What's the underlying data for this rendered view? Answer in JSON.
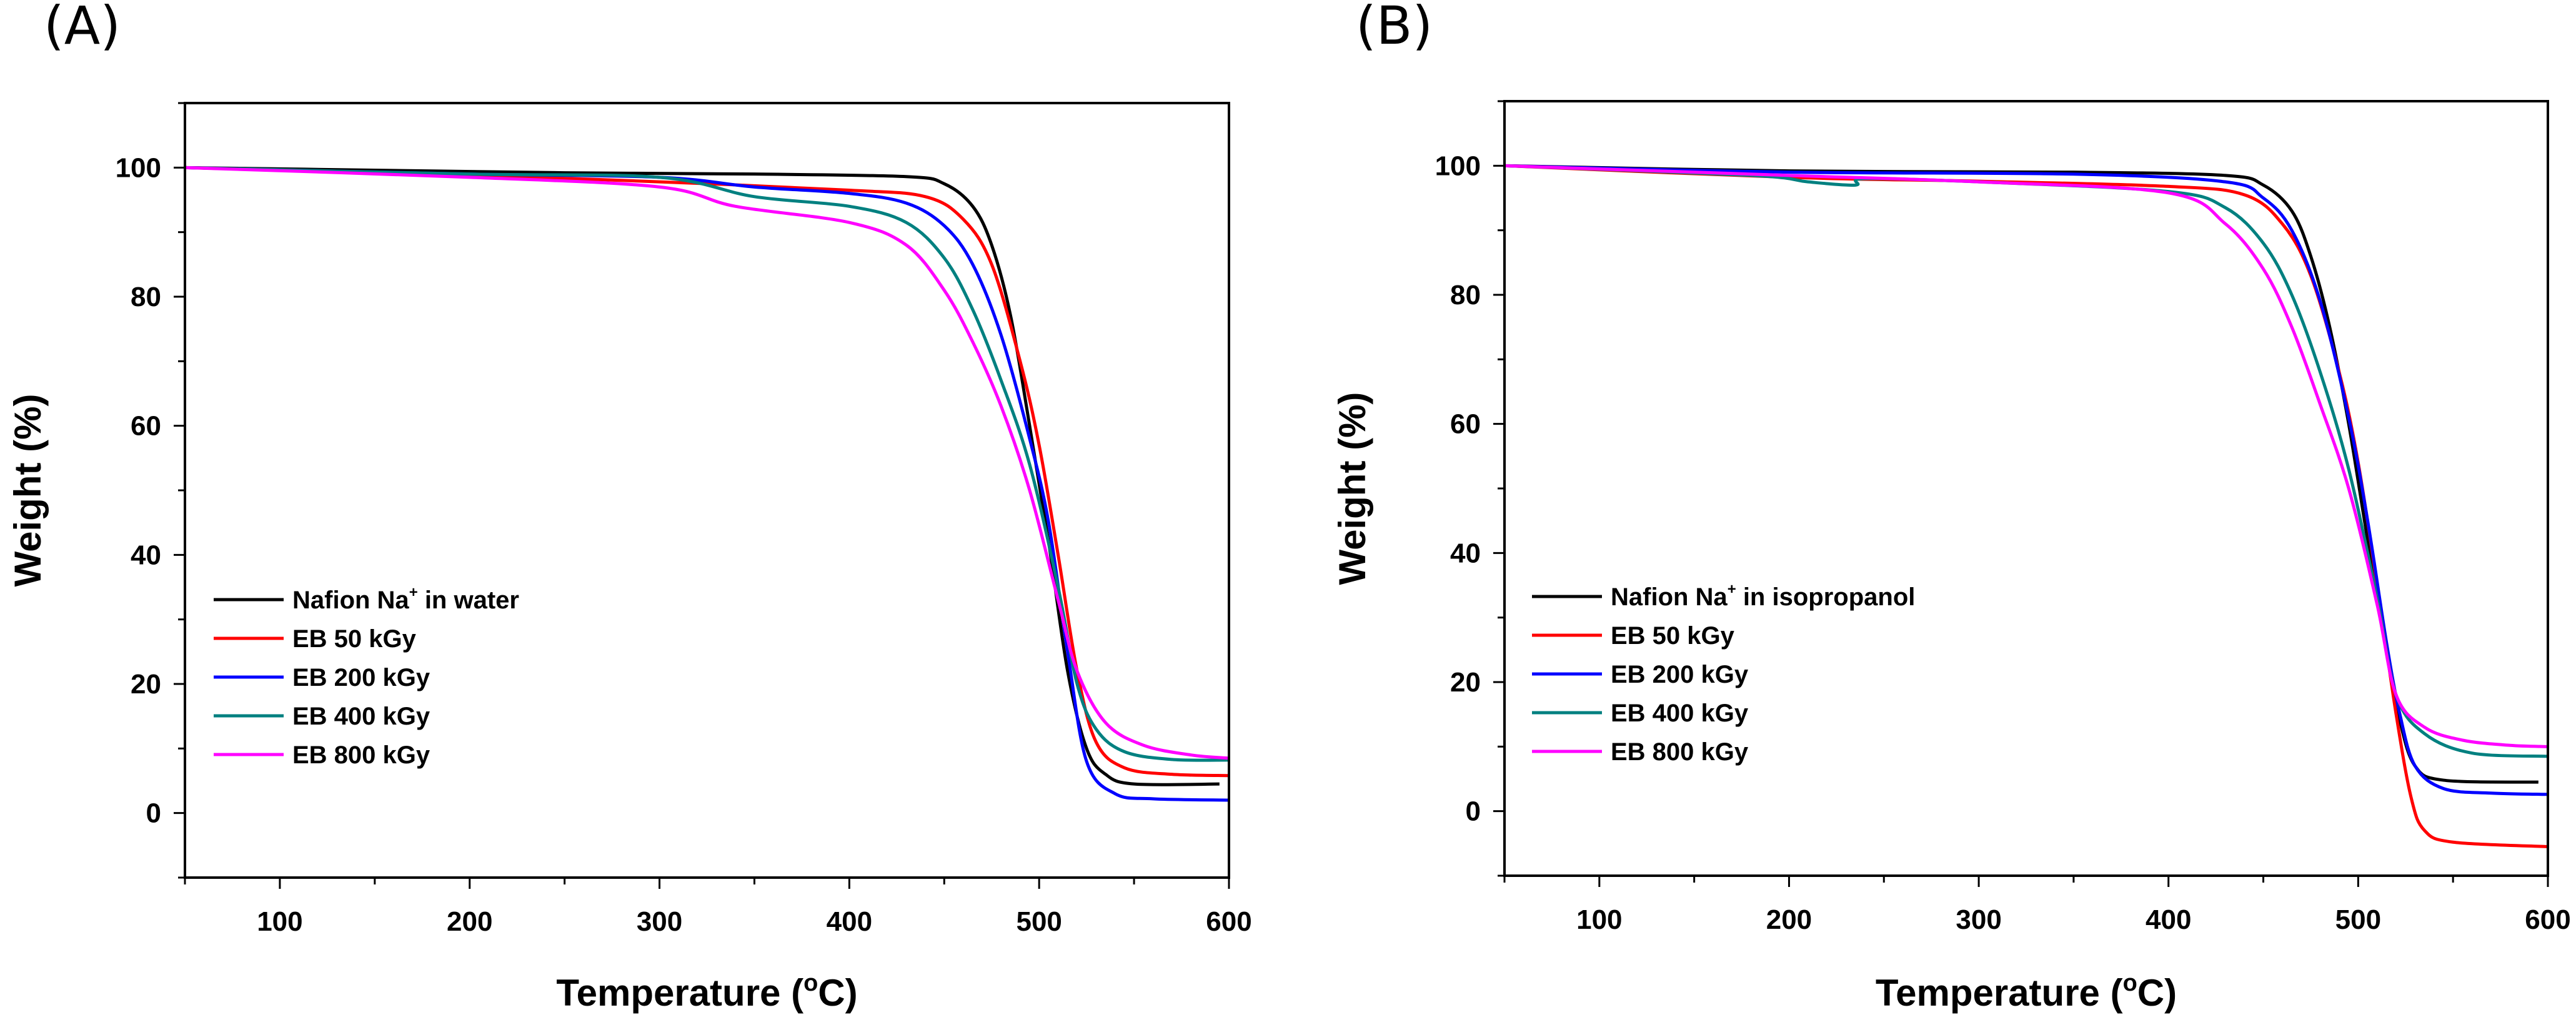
{
  "chart_data": [
    {
      "type": "line",
      "panel_label": "(A)",
      "xlabel": {
        "pre": "Temperature (",
        "sup": "o",
        "post": "C)"
      },
      "ylabel": "Weight (%)",
      "xlim": [
        50,
        600
      ],
      "ylim": [
        -10,
        110
      ],
      "xticks": [
        100,
        200,
        300,
        400,
        500,
        600
      ],
      "yticks": [
        0,
        20,
        40,
        60,
        80,
        100
      ],
      "grid": false,
      "legend_position": "lower-left",
      "series": [
        {
          "name": "Nafion Na+ in water",
          "label": {
            "pre": "Nafion Na",
            "sup": "+",
            "post": " in water"
          },
          "color": "#000000",
          "points": [
            [
              50,
              100
            ],
            [
              150,
              99.6
            ],
            [
              250,
              99.2
            ],
            [
              350,
              99
            ],
            [
              430,
              98.6
            ],
            [
              450,
              97.5
            ],
            [
              465,
              94
            ],
            [
              475,
              88
            ],
            [
              485,
              77
            ],
            [
              495,
              60
            ],
            [
              505,
              42
            ],
            [
              515,
              22
            ],
            [
              525,
              10
            ],
            [
              535,
              6
            ],
            [
              550,
              4.5
            ],
            [
              595,
              4.5
            ]
          ]
        },
        {
          "name": "EB 50 kGy",
          "label": {
            "pre": "EB 50 kGy",
            "sup": "",
            "post": ""
          },
          "color": "#ff0000",
          "points": [
            [
              50,
              100
            ],
            [
              200,
              98.8
            ],
            [
              300,
              97.8
            ],
            [
              400,
              96.5
            ],
            [
              440,
              95.5
            ],
            [
              460,
              92
            ],
            [
              475,
              85
            ],
            [
              490,
              70
            ],
            [
              500,
              57
            ],
            [
              510,
              40
            ],
            [
              520,
              22
            ],
            [
              530,
              11
            ],
            [
              545,
              7
            ],
            [
              570,
              6
            ],
            [
              600,
              5.8
            ]
          ]
        },
        {
          "name": "EB 200 kGy",
          "label": {
            "pre": "EB 200 kGy",
            "sup": "",
            "post": ""
          },
          "color": "#0000ff",
          "points": [
            [
              50,
              100
            ],
            [
              200,
              99
            ],
            [
              300,
              98.5
            ],
            [
              350,
              97
            ],
            [
              400,
              96
            ],
            [
              430,
              94.5
            ],
            [
              450,
              91
            ],
            [
              465,
              85
            ],
            [
              480,
              74
            ],
            [
              495,
              58
            ],
            [
              505,
              45
            ],
            [
              515,
              25
            ],
            [
              525,
              8
            ],
            [
              540,
              3
            ],
            [
              560,
              2.2
            ],
            [
              600,
              2
            ]
          ]
        },
        {
          "name": "EB 400 kGy",
          "label": {
            "pre": "EB 400 kGy",
            "sup": "",
            "post": ""
          },
          "color": "#008080",
          "points": [
            [
              50,
              100
            ],
            [
              200,
              99
            ],
            [
              300,
              98.5
            ],
            [
              350,
              95.5
            ],
            [
              400,
              94
            ],
            [
              430,
              91.5
            ],
            [
              450,
              86
            ],
            [
              465,
              78
            ],
            [
              480,
              67
            ],
            [
              495,
              54
            ],
            [
              510,
              35
            ],
            [
              520,
              20
            ],
            [
              530,
              13
            ],
            [
              545,
              9.5
            ],
            [
              570,
              8.3
            ],
            [
              600,
              8.2
            ]
          ]
        },
        {
          "name": "EB 800 kGy",
          "label": {
            "pre": "EB 800 kGy",
            "sup": "",
            "post": ""
          },
          "color": "#ff00ff",
          "points": [
            [
              50,
              100
            ],
            [
              200,
              98.5
            ],
            [
              300,
              97
            ],
            [
              340,
              94
            ],
            [
              400,
              91.5
            ],
            [
              430,
              88
            ],
            [
              450,
              81
            ],
            [
              465,
              73
            ],
            [
              480,
              63
            ],
            [
              495,
              50
            ],
            [
              510,
              33
            ],
            [
              520,
              22
            ],
            [
              535,
              14
            ],
            [
              555,
              10.5
            ],
            [
              580,
              9
            ],
            [
              600,
              8.5
            ]
          ]
        }
      ]
    },
    {
      "type": "line",
      "panel_label": "(B)",
      "xlabel": {
        "pre": "Temperature (",
        "sup": "o",
        "post": "C)"
      },
      "ylabel": "Weight (%)",
      "xlim": [
        50,
        600
      ],
      "ylim": [
        -10,
        110
      ],
      "xticks": [
        100,
        200,
        300,
        400,
        500,
        600
      ],
      "yticks": [
        0,
        20,
        40,
        60,
        80,
        100
      ],
      "grid": false,
      "legend_position": "lower-left",
      "series": [
        {
          "name": "Nafion Na+ in isopropanol",
          "label": {
            "pre": "Nafion Na",
            "sup": "+",
            "post": " in isopropanol"
          },
          "color": "#000000",
          "points": [
            [
              50,
              100
            ],
            [
              200,
              99.2
            ],
            [
              350,
              99
            ],
            [
              430,
              98.5
            ],
            [
              450,
              97
            ],
            [
              465,
              93
            ],
            [
              475,
              86
            ],
            [
              485,
              75
            ],
            [
              495,
              60
            ],
            [
              505,
              42
            ],
            [
              515,
              25
            ],
            [
              522,
              14
            ],
            [
              530,
              7
            ],
            [
              545,
              4.8
            ],
            [
              595,
              4.5
            ]
          ]
        },
        {
          "name": "EB 50 kGy",
          "label": {
            "pre": "EB 50 kGy",
            "sup": "",
            "post": ""
          },
          "color": "#ff0000",
          "points": [
            [
              50,
              100
            ],
            [
              200,
              98.2
            ],
            [
              300,
              97.6
            ],
            [
              400,
              96.8
            ],
            [
              440,
              95.5
            ],
            [
              460,
              91
            ],
            [
              475,
              83
            ],
            [
              490,
              68
            ],
            [
              500,
              54
            ],
            [
              510,
              35
            ],
            [
              520,
              15
            ],
            [
              528,
              2
            ],
            [
              535,
              -3
            ],
            [
              550,
              -4.8
            ],
            [
              600,
              -5.5
            ]
          ]
        },
        {
          "name": "EB 200 kGy",
          "label": {
            "pre": "EB 200 kGy",
            "sup": "",
            "post": ""
          },
          "color": "#0000ff",
          "points": [
            [
              50,
              100
            ],
            [
              200,
              99
            ],
            [
              350,
              98.7
            ],
            [
              430,
              97.5
            ],
            [
              450,
              95
            ],
            [
              465,
              90
            ],
            [
              480,
              79
            ],
            [
              495,
              61
            ],
            [
              505,
              45
            ],
            [
              515,
              26
            ],
            [
              522,
              15
            ],
            [
              530,
              7
            ],
            [
              545,
              3.5
            ],
            [
              570,
              2.8
            ],
            [
              600,
              2.6
            ]
          ]
        },
        {
          "name": "EB 400 kGy",
          "label": {
            "pre": "EB 400 kGy",
            "sup": "",
            "post": ""
          },
          "color": "#008080",
          "points": [
            [
              50,
              100
            ],
            [
              180,
              98.5
            ],
            [
              210,
              97.5
            ],
            [
              235,
              97
            ],
            [
              240,
              98
            ],
            [
              300,
              97.5
            ],
            [
              400,
              96
            ],
            [
              430,
              93.5
            ],
            [
              450,
              88
            ],
            [
              465,
              80
            ],
            [
              480,
              68
            ],
            [
              495,
              53
            ],
            [
              510,
              33
            ],
            [
              520,
              18
            ],
            [
              535,
              12
            ],
            [
              560,
              9
            ],
            [
              600,
              8.5
            ]
          ]
        },
        {
          "name": "EB 800 kGy",
          "label": {
            "pre": "EB 800 kGy",
            "sup": "",
            "post": ""
          },
          "color": "#ff00ff",
          "points": [
            [
              50,
              100
            ],
            [
              200,
              98.5
            ],
            [
              300,
              97.5
            ],
            [
              400,
              95.8
            ],
            [
              430,
              91
            ],
            [
              450,
              84
            ],
            [
              465,
              75
            ],
            [
              480,
              63
            ],
            [
              495,
              50
            ],
            [
              510,
              32
            ],
            [
              520,
              18
            ],
            [
              535,
              13
            ],
            [
              555,
              11
            ],
            [
              580,
              10.2
            ],
            [
              600,
              10
            ]
          ]
        }
      ]
    }
  ]
}
